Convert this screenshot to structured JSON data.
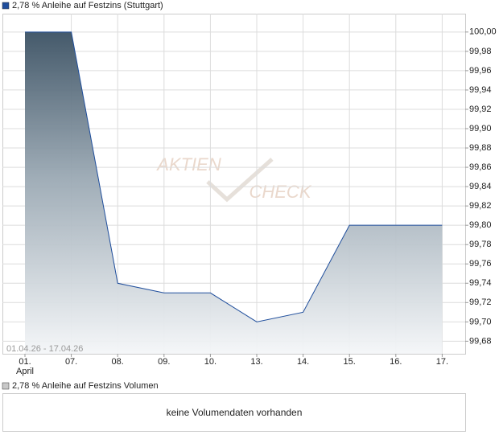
{
  "chart_data": {
    "type": "area",
    "title": "2,78 % Anleihe auf Festzins (Stuttgart)",
    "date_range": "01.04.26 - 17.04.26",
    "watermark": [
      "AKTIEN",
      "CHECK"
    ],
    "categories": [
      "01.",
      "07.",
      "08.",
      "09.",
      "10.",
      "13.",
      "14.",
      "15.",
      "16.",
      "17."
    ],
    "month_label": "April",
    "series": [
      {
        "name": "2,78 % Anleihe auf Festzins (Stuttgart)",
        "color": "#1f4e9c",
        "values": [
          100.0,
          100.0,
          99.74,
          99.73,
          99.73,
          99.7,
          99.71,
          99.8,
          99.8,
          99.8
        ]
      }
    ],
    "ylim": [
      99.667,
      100.019
    ],
    "yticks": [
      {
        "value": 99.68,
        "label": "99,68"
      },
      {
        "value": 99.7,
        "label": "99,70"
      },
      {
        "value": 99.72,
        "label": "99,72"
      },
      {
        "value": 99.74,
        "label": "99,74"
      },
      {
        "value": 99.76,
        "label": "99,76"
      },
      {
        "value": 99.78,
        "label": "99,78"
      },
      {
        "value": 99.8,
        "label": "99,80"
      },
      {
        "value": 99.82,
        "label": "99,82"
      },
      {
        "value": 99.84,
        "label": "99,84"
      },
      {
        "value": 99.86,
        "label": "99,86"
      },
      {
        "value": 99.88,
        "label": "99,88"
      },
      {
        "value": 99.9,
        "label": "99,90"
      },
      {
        "value": 99.92,
        "label": "99,92"
      },
      {
        "value": 99.94,
        "label": "99,94"
      },
      {
        "value": 99.96,
        "label": "99,96"
      },
      {
        "value": 99.98,
        "label": "99,98"
      },
      {
        "value": 100.0,
        "label": "100,00"
      }
    ],
    "grid": true,
    "volume_panel": {
      "title": "2,78 % Anleihe auf Festzins Volumen",
      "message": "keine Volumendaten vorhanden"
    }
  }
}
